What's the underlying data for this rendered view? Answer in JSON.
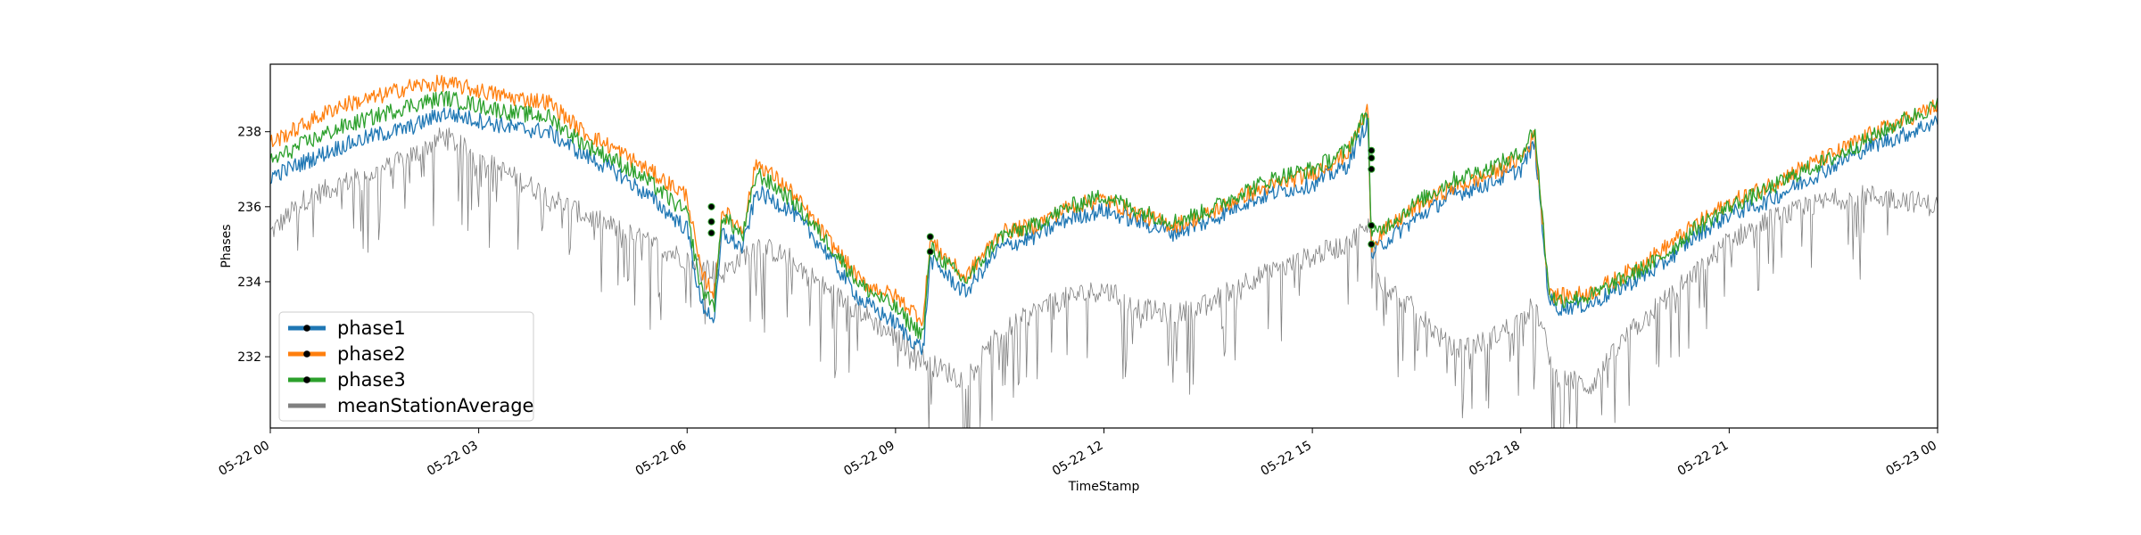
{
  "chart_data": {
    "type": "line",
    "title": "",
    "xlabel": "TimeStamp",
    "ylabel": "Phases",
    "x_ticks": [
      "05-22 00",
      "05-22 03",
      "05-22 06",
      "05-22 09",
      "05-22 12",
      "05-22 15",
      "05-22 18",
      "05-22 21",
      "05-23 00"
    ],
    "x_range_hours": [
      0,
      24
    ],
    "y_ticks": [
      232,
      234,
      236,
      238
    ],
    "ylim": [
      230.1,
      239.8
    ],
    "grid": false,
    "legend_position": "lower-left",
    "series": [
      {
        "name": "phase1",
        "color": "#1f77b4",
        "x_hours": [
          0,
          0.5,
          1,
          1.5,
          2,
          2.5,
          3,
          3.5,
          4,
          4.5,
          5,
          5.5,
          6,
          6.2,
          6.4,
          6.5,
          6.8,
          7,
          7.5,
          8,
          8.5,
          9,
          9.2,
          9.4,
          9.5,
          10,
          10.5,
          11,
          11.5,
          12,
          12.5,
          13,
          13.5,
          14,
          14.5,
          15,
          15.5,
          15.8,
          15.85,
          16,
          16.5,
          17,
          17.5,
          18,
          18.2,
          18.4,
          18.5,
          19,
          19.5,
          20,
          20.5,
          21,
          21.5,
          22,
          22.5,
          23,
          23.5,
          24
        ],
        "values": [
          236.8,
          237.2,
          237.6,
          237.9,
          238.1,
          238.5,
          238.3,
          238.1,
          238.0,
          237.4,
          236.9,
          236.2,
          235.4,
          233.4,
          233.0,
          235.3,
          234.9,
          236.4,
          235.9,
          234.8,
          233.5,
          232.9,
          232.5,
          232.2,
          234.6,
          233.7,
          234.9,
          235.2,
          235.7,
          235.9,
          235.6,
          235.3,
          235.6,
          236.1,
          236.4,
          236.6,
          237.1,
          238.3,
          234.7,
          235.0,
          235.7,
          236.3,
          236.6,
          237.0,
          237.7,
          233.6,
          233.3,
          233.4,
          233.9,
          234.4,
          235.2,
          235.8,
          236.1,
          236.6,
          237.1,
          237.6,
          237.9,
          238.3
        ]
      },
      {
        "name": "phase2",
        "color": "#ff7f0e",
        "x_hours": [
          0,
          0.5,
          1,
          1.5,
          2,
          2.5,
          3,
          3.5,
          4,
          4.5,
          5,
          5.5,
          6,
          6.2,
          6.4,
          6.5,
          6.8,
          7,
          7.5,
          8,
          8.5,
          9,
          9.2,
          9.4,
          9.5,
          10,
          10.5,
          11,
          11.5,
          12,
          12.5,
          13,
          13.5,
          14,
          14.5,
          15,
          15.5,
          15.8,
          15.85,
          16,
          16.5,
          17,
          17.5,
          18,
          18.2,
          18.4,
          18.5,
          19,
          19.5,
          20,
          20.5,
          21,
          21.5,
          22,
          22.5,
          23,
          23.5,
          24
        ],
        "values": [
          237.7,
          238.2,
          238.7,
          238.9,
          239.2,
          239.3,
          239.1,
          238.9,
          238.8,
          238.0,
          237.5,
          236.9,
          236.3,
          234.2,
          233.7,
          235.9,
          235.4,
          237.2,
          236.4,
          235.2,
          234.0,
          233.6,
          233.3,
          233.0,
          235.1,
          234.1,
          235.3,
          235.5,
          236.0,
          236.2,
          235.8,
          235.5,
          235.8,
          236.3,
          236.6,
          236.9,
          237.4,
          238.6,
          235.0,
          235.3,
          236.0,
          236.5,
          236.8,
          237.3,
          237.9,
          233.9,
          233.6,
          233.7,
          234.2,
          234.8,
          235.5,
          236.1,
          236.5,
          237.0,
          237.4,
          237.9,
          238.3,
          238.7
        ]
      },
      {
        "name": "phase3",
        "color": "#2ca02c",
        "x_hours": [
          0,
          0.5,
          1,
          1.5,
          2,
          2.5,
          3,
          3.5,
          4,
          4.5,
          5,
          5.5,
          6,
          6.2,
          6.4,
          6.5,
          6.8,
          7,
          7.5,
          8,
          8.5,
          9,
          9.2,
          9.4,
          9.5,
          10,
          10.5,
          11,
          11.5,
          12,
          12.5,
          13,
          13.5,
          14,
          14.5,
          15,
          15.5,
          15.8,
          15.85,
          16,
          16.5,
          17,
          17.5,
          18,
          18.2,
          18.4,
          18.5,
          19,
          19.5,
          20,
          20.5,
          21,
          21.5,
          22,
          22.5,
          23,
          23.5,
          24
        ],
        "values": [
          237.2,
          237.7,
          238.1,
          238.4,
          238.7,
          238.9,
          238.7,
          238.5,
          238.4,
          237.7,
          237.2,
          236.6,
          235.8,
          233.8,
          233.4,
          235.8,
          235.2,
          236.9,
          236.2,
          235.1,
          233.9,
          233.3,
          232.9,
          232.6,
          234.9,
          234.0,
          235.2,
          235.5,
          236.0,
          236.3,
          235.9,
          235.6,
          235.9,
          236.4,
          236.8,
          237.0,
          237.5,
          238.6,
          235.2,
          235.4,
          236.1,
          236.7,
          237.0,
          237.4,
          238.1,
          233.8,
          233.5,
          233.6,
          234.1,
          234.6,
          235.4,
          236.0,
          236.4,
          236.9,
          237.3,
          237.8,
          238.3,
          238.7
        ]
      },
      {
        "name": "meanStationAverage",
        "color": "#808080",
        "x_hours": [
          0,
          0.5,
          1,
          1.5,
          2,
          2.5,
          3,
          3.5,
          4,
          4.5,
          5,
          5.5,
          6,
          6.5,
          7,
          7.5,
          8,
          8.5,
          9,
          9.5,
          10,
          10.5,
          11,
          11.5,
          12,
          12.5,
          13,
          13.5,
          14,
          14.5,
          15,
          15.5,
          15.8,
          16,
          16.5,
          17,
          17.5,
          18,
          18.2,
          18.5,
          19,
          19.5,
          20,
          20.5,
          21,
          21.5,
          22,
          22.5,
          23,
          23.5,
          24
        ],
        "values": [
          235.3,
          236.2,
          236.6,
          236.9,
          237.3,
          237.9,
          237.3,
          236.8,
          236.3,
          235.8,
          235.4,
          235.0,
          234.6,
          234.2,
          235.0,
          234.6,
          233.8,
          233.2,
          232.5,
          231.8,
          231.4,
          232.6,
          233.2,
          233.6,
          233.8,
          233.3,
          233.1,
          233.4,
          234.0,
          234.3,
          234.7,
          235.0,
          235.5,
          234.0,
          233.2,
          232.2,
          232.4,
          233.0,
          233.4,
          231.5,
          231.2,
          232.5,
          233.4,
          234.2,
          235.1,
          235.6,
          235.9,
          236.2,
          236.3,
          236.2,
          236.0
        ]
      }
    ],
    "markers": [
      {
        "x_hours": 6.35,
        "values": [
          236.0,
          235.6,
          235.3
        ]
      },
      {
        "x_hours": 9.5,
        "values": [
          235.2,
          234.8
        ]
      },
      {
        "x_hours": 15.85,
        "values": [
          237.5,
          237.3,
          237.0,
          235.5,
          235.0
        ]
      }
    ]
  }
}
